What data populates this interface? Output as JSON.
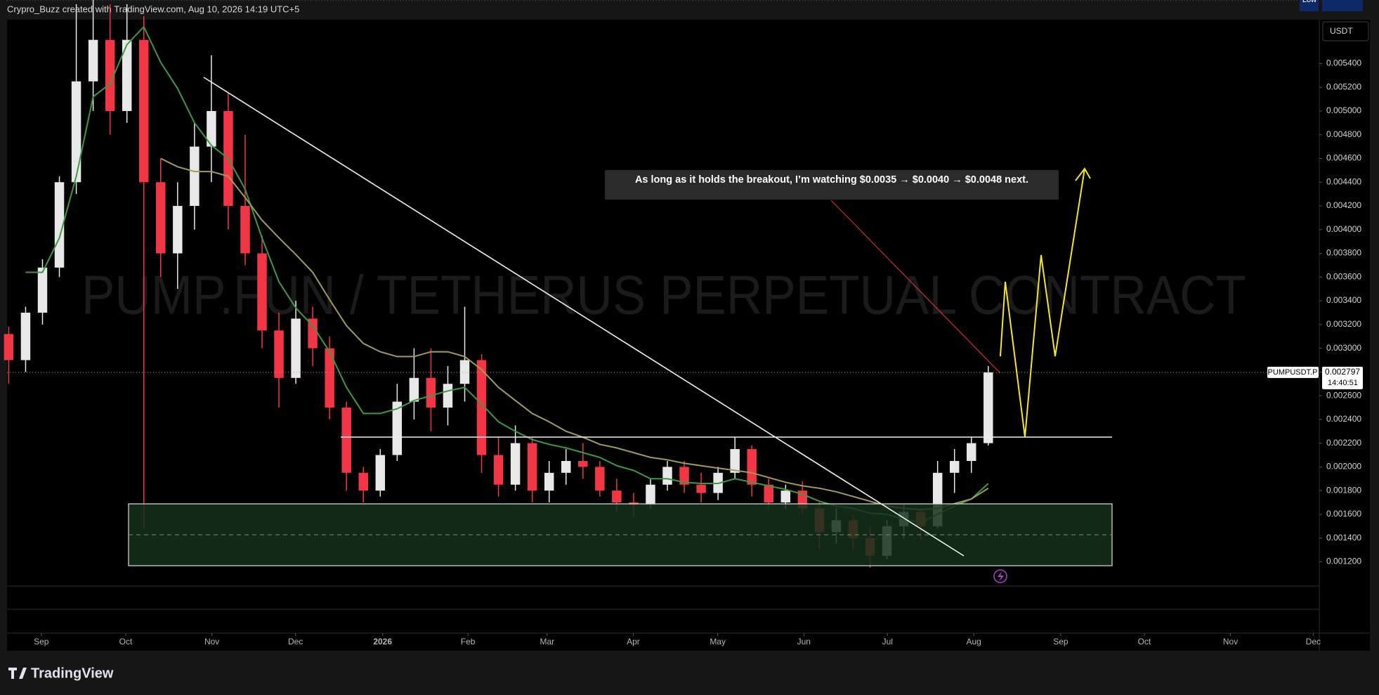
{
  "header": "Crypro_Buzz created with TradingView.com, Aug 10, 2026 14:19 UTC+5",
  "footer_logo": "TradingView",
  "chart_data": {
    "type": "candlestick",
    "title": "PUMP.FUN / TETHERUS PERPETUAL CONTRACT",
    "annotation": "As long as it holds the breakout, I’m watching $0.0035 → $0.0040 → $0.0048 next.",
    "currency": "USDT",
    "symbol": "PUMPUSDT.P",
    "last_price": 0.002797,
    "countdown": "14:40:51",
    "low_label": "Low",
    "low": [
      0.0027,
      0.0028,
      0.0032,
      0.0036,
      0.0043,
      0.005,
      0.0048,
      0.0049,
      0.00148,
      0.0036,
      0.0035,
      0.004,
      0.0044,
      0.004,
      0.0037,
      0.003,
      0.0025,
      0.0027,
      0.00285,
      0.0024,
      0.0018,
      0.0017,
      0.00175,
      0.00205,
      0.0024,
      0.0023,
      0.00235,
      0.00255,
      0.00195,
      0.00175,
      0.0018,
      0.0017,
      0.0017,
      0.00185,
      0.0019,
      0.00175,
      0.00162,
      0.00158,
      0.00165,
      0.0018,
      0.00178,
      0.0017,
      0.00172,
      0.0019,
      0.00175,
      0.00165,
      0.00165,
      0.0016,
      0.0013,
      0.00135,
      0.0013,
      0.00115,
      0.00122,
      0.0014,
      0.00138,
      0.00148,
      0.00178,
      0.00195,
      0.00218
    ],
    "up_color": "#e8e8e8",
    "down_color": "#f23645",
    "categories": [
      null,
      null,
      null,
      null,
      null,
      null,
      null,
      null,
      null,
      null,
      null,
      null,
      null,
      null,
      null,
      null,
      null,
      null,
      null,
      null,
      null,
      null,
      null,
      null,
      null,
      null,
      null,
      null,
      null,
      null,
      null,
      null,
      null,
      null,
      null,
      null,
      null,
      null,
      null,
      null,
      null,
      null,
      null,
      null,
      null,
      null,
      null,
      null,
      null,
      null,
      null,
      null,
      null,
      null,
      null,
      null,
      null,
      null,
      null
    ],
    "open": [
      0.00312,
      0.0029,
      0.0033,
      0.00368,
      0.0044,
      0.00525,
      0.0056,
      0.005,
      0.0056,
      0.0044,
      0.0038,
      0.0042,
      0.0047,
      0.005,
      0.0042,
      0.0038,
      0.00315,
      0.00275,
      0.00325,
      0.003,
      0.0025,
      0.00195,
      0.0018,
      0.0021,
      0.00255,
      0.00275,
      0.0025,
      0.0027,
      0.0029,
      0.0021,
      0.00185,
      0.0022,
      0.0018,
      0.00195,
      0.00205,
      0.002,
      0.0018,
      0.0017,
      0.00168,
      0.00185,
      0.002,
      0.00185,
      0.00178,
      0.00195,
      0.00215,
      0.00185,
      0.0017,
      0.0018,
      0.00165,
      0.00145,
      0.00155,
      0.0014,
      0.00125,
      0.0015,
      0.00162,
      0.0015,
      0.00195,
      0.00205,
      0.0022
    ],
    "high": [
      0.00318,
      0.00335,
      0.00375,
      0.00445,
      0.0059,
      0.006,
      0.0059,
      0.0059,
      0.0058,
      0.0046,
      0.0044,
      0.0049,
      0.00547,
      0.00515,
      0.0048,
      0.00395,
      0.0033,
      0.0034,
      0.00335,
      0.0031,
      0.00255,
      0.002,
      0.00215,
      0.0027,
      0.003,
      0.003,
      0.00285,
      0.00335,
      0.00295,
      0.00225,
      0.00235,
      0.00225,
      0.00205,
      0.00215,
      0.0022,
      0.00205,
      0.0019,
      0.00178,
      0.0019,
      0.00205,
      0.00205,
      0.00195,
      0.002,
      0.00225,
      0.00218,
      0.0019,
      0.00185,
      0.00188,
      0.0017,
      0.00165,
      0.0016,
      0.0015,
      0.00155,
      0.00168,
      0.00165,
      0.00205,
      0.00215,
      0.00225,
      0.00285
    ],
    "close": [
      0.0029,
      0.0033,
      0.00368,
      0.0044,
      0.00525,
      0.0056,
      0.005,
      0.0056,
      0.0044,
      0.0038,
      0.0042,
      0.0047,
      0.005,
      0.0042,
      0.0038,
      0.00315,
      0.00275,
      0.00325,
      0.003,
      0.0025,
      0.00195,
      0.0018,
      0.0021,
      0.00255,
      0.00275,
      0.0025,
      0.0027,
      0.0029,
      0.0021,
      0.00185,
      0.0022,
      0.0018,
      0.00195,
      0.00205,
      0.002,
      0.0018,
      0.0017,
      0.00168,
      0.00185,
      0.002,
      0.00185,
      0.00178,
      0.00195,
      0.00215,
      0.00185,
      0.0017,
      0.0018,
      0.00165,
      0.00145,
      0.00155,
      0.0014,
      0.00125,
      0.0015,
      0.00162,
      0.0015,
      0.00195,
      0.00205,
      0.0022,
      0.002797
    ],
    "lines": [
      {
        "color": "#3d9a40",
        "values": [
          null,
          0.00364,
          0.00364,
          0.00393,
          0.00445,
          0.00512,
          0.00523,
          0.00556,
          0.00571,
          0.00541,
          0.00519,
          0.0049,
          0.00471,
          0.0046,
          0.00434,
          0.00393,
          0.00356,
          0.00334,
          0.00319,
          0.00297,
          0.00267,
          0.00245,
          0.00245,
          0.00249,
          0.00256,
          0.0026,
          0.00264,
          0.00267,
          0.00253,
          0.00238,
          0.0023,
          0.00223,
          0.00219,
          0.00216,
          0.00212,
          0.00208,
          0.00201,
          0.00197,
          0.0019,
          0.0019,
          0.00187,
          0.00186,
          0.00186,
          0.0019,
          0.00187,
          0.00184,
          0.00181,
          0.00177,
          0.00171,
          0.00167,
          0.00165,
          0.00161,
          0.0016,
          0.00156,
          0.00153,
          0.0016,
          0.00167,
          0.00173,
          0.00186
        ]
      },
      {
        "color": "#a39c55",
        "values": [
          null,
          null,
          null,
          null,
          null,
          null,
          null,
          null,
          null,
          0.0046,
          0.00453,
          0.00449,
          0.00449,
          0.00445,
          0.00427,
          0.00408,
          0.00393,
          0.00379,
          0.00364,
          0.00341,
          0.00319,
          0.00304,
          0.00297,
          0.00293,
          0.00293,
          0.00297,
          0.00297,
          0.00293,
          0.00282,
          0.00267,
          0.00256,
          0.00245,
          0.00238,
          0.0023,
          0.00225,
          0.00219,
          0.00216,
          0.00212,
          0.00208,
          0.00206,
          0.00203,
          0.00201,
          0.00199,
          0.00197,
          0.00195,
          0.00191,
          0.00187,
          0.00184,
          0.00182,
          0.00179,
          0.00175,
          0.00171,
          0.00167,
          0.00165,
          0.00164,
          0.00165,
          0.00169,
          0.00173,
          0.00182
        ]
      }
    ],
    "xlim": [
      -0.1,
      77.6
    ],
    "xticks": [
      {
        "value": 1.93,
        "label": "Sep"
      },
      {
        "value": 6.93,
        "label": "Oct"
      },
      {
        "value": 12.03,
        "label": "Nov"
      },
      {
        "value": 16.98,
        "label": "Dec"
      },
      {
        "value": 22.14,
        "label": "2026"
      },
      {
        "value": 27.19,
        "label": "Feb"
      },
      {
        "value": 31.88,
        "label": "Mar"
      },
      {
        "value": 36.98,
        "label": "Apr"
      },
      {
        "value": 41.98,
        "label": "May"
      },
      {
        "value": 47.08,
        "label": "Jun"
      },
      {
        "value": 52.03,
        "label": "Jul"
      },
      {
        "value": 57.14,
        "label": "Aug"
      },
      {
        "value": 62.29,
        "label": "Sep"
      },
      {
        "value": 67.24,
        "label": "Oct"
      },
      {
        "value": 72.34,
        "label": "Nov"
      },
      {
        "value": 77.24,
        "label": "Dec"
      }
    ],
    "ylim": [
      0.001007,
      0.00577
    ],
    "yticks": [
      {
        "value": 0.0012,
        "label": "0.001200"
      },
      {
        "value": 0.0014,
        "label": "0.001400"
      },
      {
        "value": 0.0016,
        "label": "0.001600"
      },
      {
        "value": 0.0018,
        "label": "0.001800"
      },
      {
        "value": 0.002,
        "label": "0.002000"
      },
      {
        "value": 0.0022,
        "label": "0.002200"
      },
      {
        "value": 0.0024,
        "label": "0.002400"
      },
      {
        "value": 0.0026,
        "label": "0.002600"
      },
      {
        "value": 0.0028,
        "label": "0.002800"
      },
      {
        "value": 0.003,
        "label": "0.003000"
      },
      {
        "value": 0.0032,
        "label": "0.003200"
      },
      {
        "value": 0.0034,
        "label": "0.003400"
      },
      {
        "value": 0.0036,
        "label": "0.003600"
      },
      {
        "value": 0.0038,
        "label": "0.003800"
      },
      {
        "value": 0.004,
        "label": "0.004000"
      },
      {
        "value": 0.0042,
        "label": "0.004200"
      },
      {
        "value": 0.0044,
        "label": "0.004400"
      },
      {
        "value": 0.0046,
        "label": "0.004600"
      },
      {
        "value": 0.0048,
        "label": "0.004800"
      },
      {
        "value": 0.005,
        "label": "0.005000"
      },
      {
        "value": 0.0052,
        "label": "0.005200"
      },
      {
        "value": 0.0054,
        "label": "0.005400"
      }
    ]
  }
}
